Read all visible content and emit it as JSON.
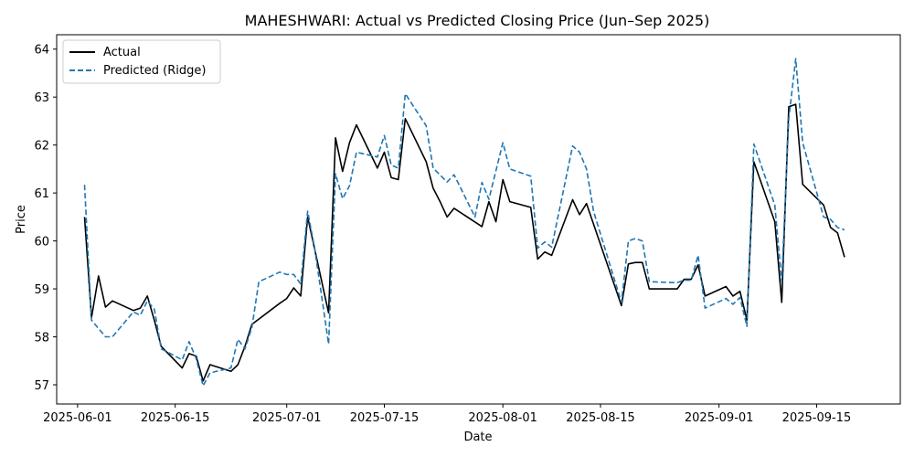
{
  "chart_data": {
    "type": "line",
    "title": "MAHESHWARI: Actual vs Predicted Closing Price (Jun–Sep 2025)",
    "xlabel": "Date",
    "ylabel": "Price",
    "xlim": [
      "2025-05-29",
      "2025-09-27"
    ],
    "ylim": [
      56.6,
      64.3
    ],
    "x_ticks": [
      "2025-06-01",
      "2025-06-15",
      "2025-07-01",
      "2025-07-15",
      "2025-08-01",
      "2025-08-15",
      "2025-09-01",
      "2025-09-15"
    ],
    "y_ticks": [
      57,
      58,
      59,
      60,
      61,
      62,
      63,
      64
    ],
    "grid": false,
    "legend": "top-left",
    "series": [
      {
        "name": "Actual",
        "color": "#000000",
        "style": "solid",
        "points": [
          [
            "2025-06-02",
            60.5
          ],
          [
            "2025-06-03",
            58.4
          ],
          [
            "2025-06-04",
            59.27
          ],
          [
            "2025-06-05",
            58.62
          ],
          [
            "2025-06-06",
            58.75
          ],
          [
            "2025-06-09",
            58.55
          ],
          [
            "2025-06-10",
            58.6
          ],
          [
            "2025-06-11",
            58.85
          ],
          [
            "2025-06-12",
            58.35
          ],
          [
            "2025-06-13",
            57.8
          ],
          [
            "2025-06-16",
            57.35
          ],
          [
            "2025-06-17",
            57.65
          ],
          [
            "2025-06-18",
            57.6
          ],
          [
            "2025-06-19",
            57.08
          ],
          [
            "2025-06-20",
            57.42
          ],
          [
            "2025-06-23",
            57.28
          ],
          [
            "2025-06-24",
            57.42
          ],
          [
            "2025-06-25",
            57.8
          ],
          [
            "2025-06-26",
            58.26
          ],
          [
            "2025-06-30",
            58.7
          ],
          [
            "2025-07-01",
            58.8
          ],
          [
            "2025-07-02",
            59.02
          ],
          [
            "2025-07-03",
            58.85
          ],
          [
            "2025-07-04",
            60.5
          ],
          [
            "2025-07-07",
            58.5
          ],
          [
            "2025-07-08",
            62.15
          ],
          [
            "2025-07-09",
            61.45
          ],
          [
            "2025-07-10",
            62.05
          ],
          [
            "2025-07-11",
            62.42
          ],
          [
            "2025-07-14",
            61.52
          ],
          [
            "2025-07-15",
            61.85
          ],
          [
            "2025-07-16",
            61.32
          ],
          [
            "2025-07-17",
            61.28
          ],
          [
            "2025-07-18",
            62.55
          ],
          [
            "2025-07-21",
            61.65
          ],
          [
            "2025-07-22",
            61.1
          ],
          [
            "2025-07-23",
            60.82
          ],
          [
            "2025-07-24",
            60.5
          ],
          [
            "2025-07-25",
            60.68
          ],
          [
            "2025-07-29",
            60.3
          ],
          [
            "2025-07-30",
            60.82
          ],
          [
            "2025-07-31",
            60.4
          ],
          [
            "2025-08-01",
            61.28
          ],
          [
            "2025-08-02",
            60.82
          ],
          [
            "2025-08-05",
            60.7
          ],
          [
            "2025-08-06",
            59.62
          ],
          [
            "2025-08-07",
            59.77
          ],
          [
            "2025-08-08",
            59.7
          ],
          [
            "2025-08-11",
            60.86
          ],
          [
            "2025-08-12",
            60.55
          ],
          [
            "2025-08-13",
            60.78
          ],
          [
            "2025-08-18",
            58.65
          ],
          [
            "2025-08-19",
            59.52
          ],
          [
            "2025-08-20",
            59.55
          ],
          [
            "2025-08-21",
            59.55
          ],
          [
            "2025-08-22",
            59.0
          ],
          [
            "2025-08-26",
            59.0
          ],
          [
            "2025-08-27",
            59.2
          ],
          [
            "2025-08-28",
            59.2
          ],
          [
            "2025-08-29",
            59.5
          ],
          [
            "2025-08-30",
            58.85
          ],
          [
            "2025-09-02",
            59.05
          ],
          [
            "2025-09-03",
            58.85
          ],
          [
            "2025-09-04",
            58.95
          ],
          [
            "2025-09-05",
            58.35
          ],
          [
            "2025-09-06",
            61.65
          ],
          [
            "2025-09-09",
            60.4
          ],
          [
            "2025-09-10",
            58.72
          ],
          [
            "2025-09-11",
            62.8
          ],
          [
            "2025-09-12",
            62.85
          ],
          [
            "2025-09-13",
            61.18
          ],
          [
            "2025-09-16",
            60.75
          ],
          [
            "2025-09-17",
            60.28
          ],
          [
            "2025-09-18",
            60.17
          ],
          [
            "2025-09-19",
            59.66
          ]
        ]
      },
      {
        "name": "Predicted (Ridge)",
        "color": "#1f77b4",
        "style": "dashed",
        "points": [
          [
            "2025-06-02",
            61.17
          ],
          [
            "2025-06-03",
            58.35
          ],
          [
            "2025-06-05",
            58.0
          ],
          [
            "2025-06-06",
            58.0
          ],
          [
            "2025-06-09",
            58.52
          ],
          [
            "2025-06-10",
            58.45
          ],
          [
            "2025-06-11",
            58.75
          ],
          [
            "2025-06-12",
            58.58
          ],
          [
            "2025-06-13",
            57.75
          ],
          [
            "2025-06-16",
            57.52
          ],
          [
            "2025-06-17",
            57.9
          ],
          [
            "2025-06-18",
            57.55
          ],
          [
            "2025-06-19",
            56.98
          ],
          [
            "2025-06-20",
            57.25
          ],
          [
            "2025-06-23",
            57.35
          ],
          [
            "2025-06-24",
            57.95
          ],
          [
            "2025-06-25",
            57.75
          ],
          [
            "2025-06-26",
            58.2
          ],
          [
            "2025-06-27",
            59.15
          ],
          [
            "2025-06-30",
            59.35
          ],
          [
            "2025-07-01",
            59.3
          ],
          [
            "2025-07-02",
            59.3
          ],
          [
            "2025-07-03",
            59.1
          ],
          [
            "2025-07-04",
            60.62
          ],
          [
            "2025-07-05",
            59.85
          ],
          [
            "2025-07-06",
            58.85
          ],
          [
            "2025-07-07",
            57.85
          ],
          [
            "2025-07-08",
            61.4
          ],
          [
            "2025-07-09",
            60.88
          ],
          [
            "2025-07-10",
            61.15
          ],
          [
            "2025-07-11",
            61.85
          ],
          [
            "2025-07-14",
            61.75
          ],
          [
            "2025-07-15",
            62.2
          ],
          [
            "2025-07-16",
            61.58
          ],
          [
            "2025-07-17",
            61.52
          ],
          [
            "2025-07-18",
            63.07
          ],
          [
            "2025-07-21",
            62.4
          ],
          [
            "2025-07-22",
            61.52
          ],
          [
            "2025-07-24",
            61.23
          ],
          [
            "2025-07-25",
            61.38
          ],
          [
            "2025-07-28",
            60.5
          ],
          [
            "2025-07-29",
            61.22
          ],
          [
            "2025-07-30",
            60.87
          ],
          [
            "2025-08-01",
            62.05
          ],
          [
            "2025-08-02",
            61.5
          ],
          [
            "2025-08-05",
            61.35
          ],
          [
            "2025-08-06",
            59.85
          ],
          [
            "2025-08-07",
            59.98
          ],
          [
            "2025-08-08",
            59.87
          ],
          [
            "2025-08-11",
            61.98
          ],
          [
            "2025-08-12",
            61.85
          ],
          [
            "2025-08-13",
            61.5
          ],
          [
            "2025-08-14",
            60.62
          ],
          [
            "2025-08-18",
            58.72
          ],
          [
            "2025-08-19",
            60.0
          ],
          [
            "2025-08-20",
            60.05
          ],
          [
            "2025-08-21",
            60.0
          ],
          [
            "2025-08-22",
            59.15
          ],
          [
            "2025-08-26",
            59.13
          ],
          [
            "2025-08-27",
            59.18
          ],
          [
            "2025-08-28",
            59.18
          ],
          [
            "2025-08-29",
            59.7
          ],
          [
            "2025-08-30",
            58.6
          ],
          [
            "2025-09-02",
            58.8
          ],
          [
            "2025-09-03",
            58.68
          ],
          [
            "2025-09-04",
            58.82
          ],
          [
            "2025-09-05",
            58.22
          ],
          [
            "2025-09-06",
            62.02
          ],
          [
            "2025-09-09",
            60.75
          ],
          [
            "2025-09-10",
            59.15
          ],
          [
            "2025-09-11",
            62.55
          ],
          [
            "2025-09-12",
            63.8
          ],
          [
            "2025-09-13",
            62.05
          ],
          [
            "2025-09-16",
            60.5
          ],
          [
            "2025-09-17",
            60.45
          ],
          [
            "2025-09-18",
            60.28
          ],
          [
            "2025-09-19",
            60.23
          ]
        ]
      }
    ]
  }
}
